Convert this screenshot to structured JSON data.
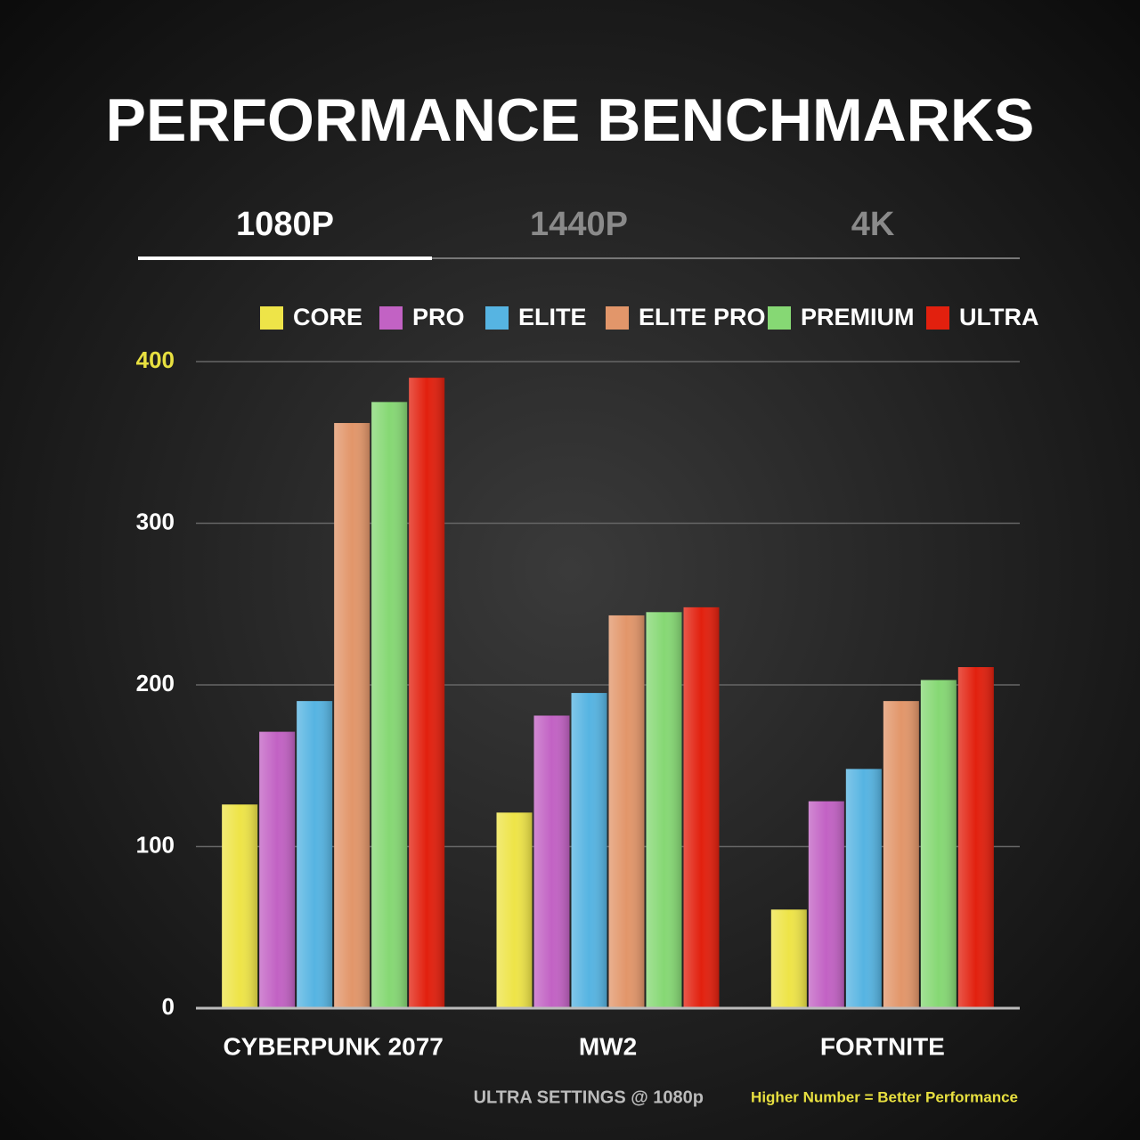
{
  "tabs": [
    "1080P",
    "1440P",
    "4K"
  ],
  "chart_data": {
    "type": "bar",
    "title": "PERFORMANCE BENCHMARKS",
    "categories": [
      "CYBERPUNK 2077",
      "MW2",
      "FORTNITE"
    ],
    "series": [
      {
        "name": "CORE",
        "color": "#eee448",
        "values": [
          126,
          121,
          61
        ]
      },
      {
        "name": "PRO",
        "color": "#c262c4",
        "values": [
          171,
          181,
          128
        ]
      },
      {
        "name": "ELITE",
        "color": "#56b4e2",
        "values": [
          190,
          195,
          148
        ]
      },
      {
        "name": "ELITE PRO",
        "color": "#e2966a",
        "values": [
          362,
          243,
          190
        ]
      },
      {
        "name": "PREMIUM",
        "color": "#86d874",
        "values": [
          375,
          245,
          203
        ]
      },
      {
        "name": "ULTRA",
        "color": "#e2200e",
        "values": [
          390,
          248,
          211
        ]
      }
    ],
    "ylim": [
      0,
      400
    ],
    "yticks": [
      0,
      100,
      200,
      300,
      400
    ],
    "grid": true
  },
  "footer": {
    "settings": "ULTRA SETTINGS @ 1080p",
    "note": "Higher Number = Better Performance"
  }
}
